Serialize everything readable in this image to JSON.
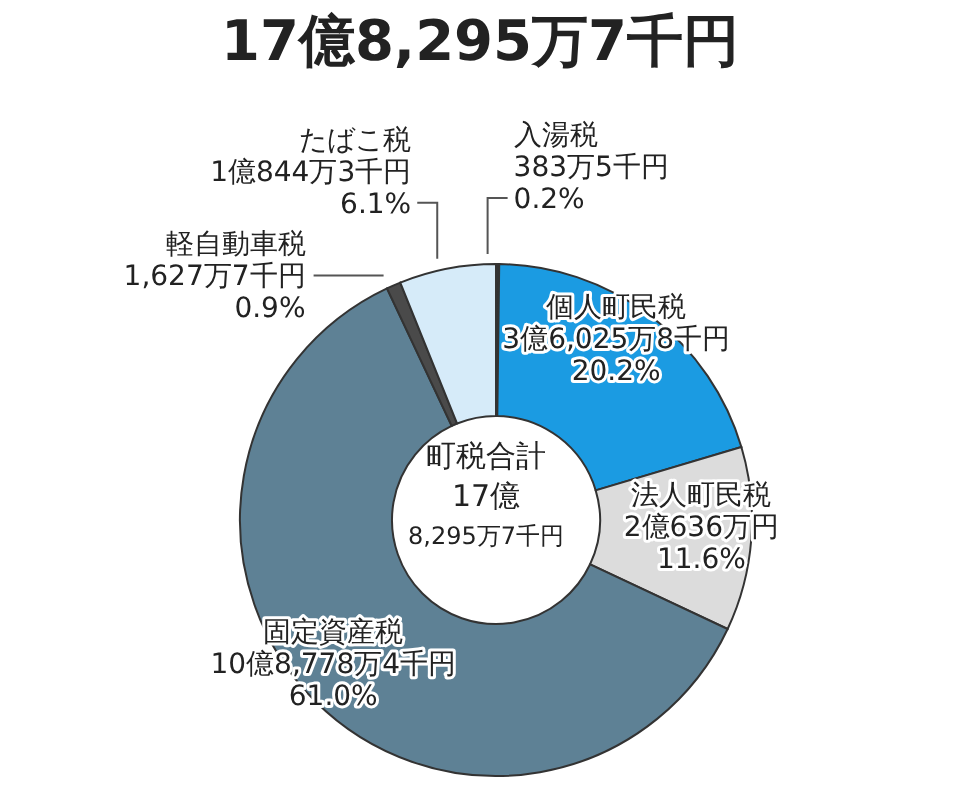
{
  "chart_data": {
    "type": "donut",
    "title": "17億8,295万7千円",
    "categories": [
      "入湯税",
      "個人町民税",
      "法人町民税",
      "固定資産税",
      "軽自動車税",
      "たばこ税"
    ],
    "values": [
      0.2,
      20.2,
      11.6,
      61.0,
      0.9,
      6.1
    ],
    "value_labels": [
      "383万5千円\n0.2%",
      "3億6,025万8千円\n20.2%",
      "2億636万円\n11.6%",
      "10億8,778万4千円\n61.0%",
      "1,627万7千円\n0.9%",
      "1億844万3千円\n6.1%"
    ],
    "colors": [
      "#333333",
      "#1b9be2",
      "#dcdcdc",
      "#5e8195",
      "#4a4a4a",
      "#d6ebf9"
    ],
    "annotations": [
      "町税合計",
      "17億",
      "8,295万7千円"
    ]
  }
}
